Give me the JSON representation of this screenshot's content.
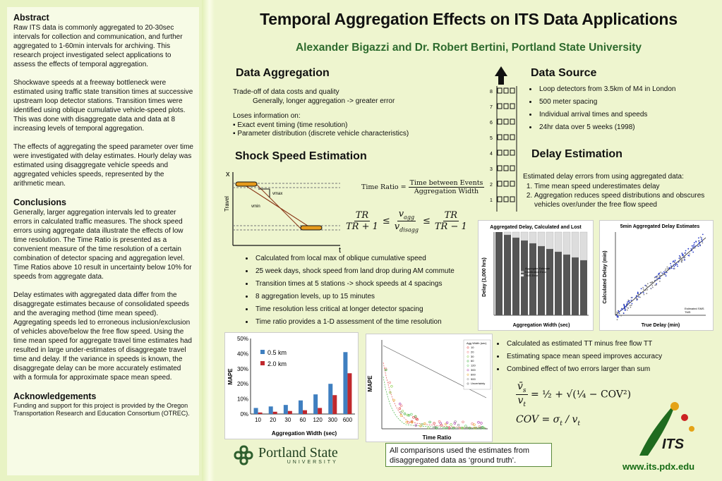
{
  "abstract": {
    "heading": "Abstract",
    "p1": "Raw ITS data is commonly aggregated to 20-30sec intervals for collection and communication, and further aggregated to 1-60min intervals for archiving. This research project investigated select applications to assess the effects of temporal aggregation.",
    "p2": "Shockwave speeds at a freeway bottleneck were estimated using traffic state transition times at successive upstream loop detector stations. Transition times were identified using oblique cumulative vehicle-speed plots. This was done with disaggregate data and data at 8 increasing levels of temporal aggregation.",
    "p3": "The effects of aggregating the speed parameter over time were investigated with delay estimates. Hourly delay was estimated using disaggregate vehicle speeds and aggregated vehicles speeds, represented by the arithmetic mean."
  },
  "conclusions": {
    "heading": "Conclusions",
    "p1": "Generally, larger aggregation intervals led to greater errors in calculated traffic measures. The shock speed errors using aggregate data illustrate the effects of low time resolution. The Time Ratio is presented as a convenient measure of the time resolution of a certain combination of detector spacing and aggregation level. Time Ratios above 10 result in uncertainty below 10% for speeds from aggregate data.",
    "p2": "Delay estimates with aggregated data differ from the disaggregate estimates because of consolidated speeds and the averaging method (time mean speed). Aggregating speeds led to erroneous inclusion/exclusion of vehicles above/below the free flow speed. Using the time mean speed for aggregate travel time estimates had resulted in large under-estimates of disaggregate travel time and delay. If the variance in speeds is known, the disaggregate delay can be more accurately estimated with a formula for approximate space mean speed."
  },
  "acknowledgements": {
    "heading": "Acknowledgements",
    "text": "Funding and support for this project is provided by the Oregon Transportation Research and Education Consortium (OTREC)."
  },
  "title": "Temporal Aggregation Effects on ITS Data Applications",
  "authors": "Alexander Bigazzi and Dr. Robert Bertini, Portland State University",
  "data_aggregation": {
    "heading": "Data Aggregation",
    "line1": "Trade-off of data costs and quality",
    "line2": "Generally, longer aggregation -> greater error",
    "line3": "Loses information on:",
    "item1": "▪ Exact event timing (time resolution)",
    "item2": "▪ Parameter distribution (discrete vehicle characteristics)"
  },
  "data_source": {
    "heading": "Data Source",
    "items": [
      "Loop detectors from 3.5km of M4 in London",
      "500 meter spacing",
      "Individual arrival times and speeds",
      "24hr data over 5 weeks (1998)"
    ],
    "stations": [
      "8",
      "7",
      "6",
      "5",
      "4",
      "3",
      "2",
      "1"
    ]
  },
  "shock": {
    "heading": "Shock Speed Estimation",
    "axis_x": "x",
    "axis_t": "t",
    "travel": "Travel",
    "vmin": "vmin",
    "vmax": "vmax",
    "time_ratio_label": "Time Ratio =",
    "time_ratio_num": "Time between Events",
    "time_ratio_den": "Aggregation Width",
    "items": [
      "Calculated from local max of oblique cumulative speed",
      "25 week days, shock speed from land drop during AM commute",
      "Transition times at 5 stations -> shock speeds at 4 spacings",
      "8 aggregation levels, up to 15 minutes",
      "Time resolution less critical at longer detector spacing",
      "Time ratio provides a 1-D assessment of the time resolution"
    ]
  },
  "delay": {
    "heading": "Delay Estimation",
    "intro": "Estimated delay errors from using aggregated data:",
    "items": [
      "Time mean speed underestimates delay",
      "Aggregation reduces speed distributions and obscures vehicles over/under the free flow speed"
    ],
    "items2": [
      "Calculated as estimated TT minus free flow TT",
      "Estimating space mean speed improves accuracy",
      "Combined effect of two errors larger than sum"
    ]
  },
  "fig_delay_bars": {
    "title": "Aggregated Delay, Calculated and Lost",
    "ylabel": "Delay (1,000 hrs)",
    "xlabel": "Aggregation Width (sec)",
    "legend": [
      "Aggregate Estimate",
      "Distribution Error",
      "TMS Error"
    ]
  },
  "fig_scatter": {
    "title": "5min Aggregated Delay Estimates",
    "ylabel": "Calculated Delay (min)",
    "xlabel": "True Delay (min)",
    "legend": [
      "Estimated SMS",
      "TMS"
    ]
  },
  "fig_mape_curve": {
    "ylabel": "MAPE",
    "xlabel": "Time Ratio",
    "legend_title": "Agg Width (sec)",
    "legend": [
      "10",
      "20",
      "30",
      "60",
      "120",
      "300",
      "600",
      "900",
      "Uncertainty"
    ]
  },
  "chart_data": {
    "type": "bar",
    "title": "",
    "xlabel": "Aggregation Width (sec)",
    "ylabel": "MAPE",
    "categories": [
      "10",
      "20",
      "30",
      "60",
      "120",
      "300",
      "600"
    ],
    "series": [
      {
        "name": "0.5 km",
        "color": "#3f7fc0",
        "values": [
          4,
          5,
          6,
          9,
          13,
          20,
          41
        ]
      },
      {
        "name": "2.0 km",
        "color": "#c0282d",
        "values": [
          1,
          1.5,
          2,
          2.5,
          4,
          12.5,
          27
        ]
      }
    ],
    "ylim": [
      0,
      50
    ],
    "yticks": [
      "0%",
      "10%",
      "20%",
      "30%",
      "40%",
      "50%"
    ],
    "legend_position": "top-left"
  },
  "note": "All comparisons used the estimates from disaggregated data as ‘ground truth’.",
  "psu": {
    "name": "Portland State",
    "sub": "UNIVERSITY"
  },
  "its": {
    "logo": "ITS",
    "url": "www.its.pdx.edu"
  },
  "colors": {
    "title_green": "#2e6b2e",
    "panel": "#f7fbe6",
    "bg": "#eef5cf"
  }
}
